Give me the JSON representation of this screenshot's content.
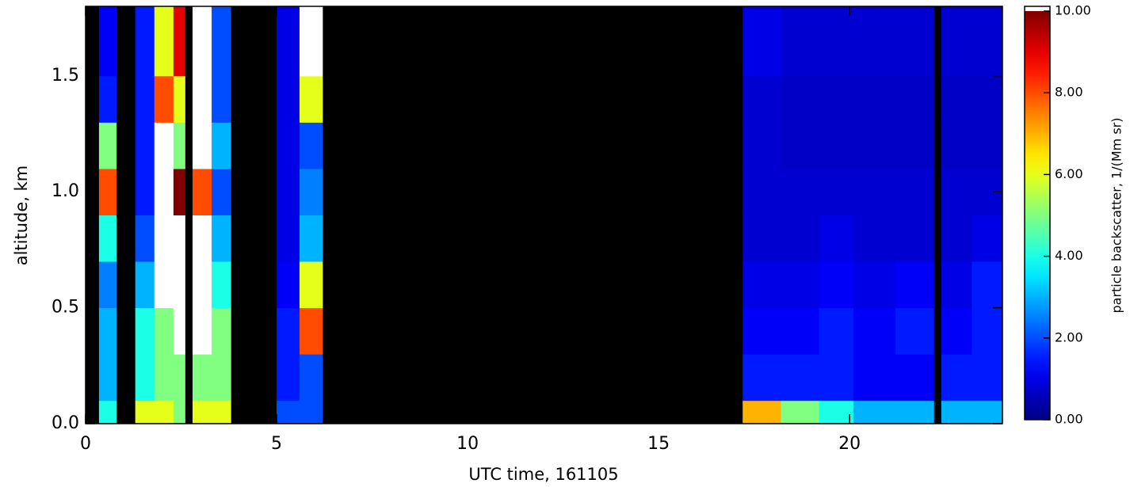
{
  "chart_data": {
    "type": "heatmap",
    "xlabel": "UTC time, 161105",
    "ylabel": "altitude, km",
    "colorbar_label": "particle backscatter, 1/(Mm sr)",
    "colormap": "jet",
    "null_color": "#000000",
    "over_color": "#ffffff",
    "xlim": [
      0,
      24
    ],
    "xticks": [
      0,
      5,
      10,
      15,
      20
    ],
    "ylim": [
      0,
      1.8
    ],
    "yticks": [
      {
        "value": 0,
        "label": "0.0"
      },
      {
        "value": 0.5,
        "label": "0.5"
      },
      {
        "value": 1.0,
        "label": "1.0"
      },
      {
        "value": 1.5,
        "label": "1.5"
      }
    ],
    "clim": [
      0,
      10
    ],
    "cticks": [
      {
        "value": 0,
        "label": "0.00"
      },
      {
        "value": 2,
        "label": "2.00"
      },
      {
        "value": 4,
        "label": "4.00"
      },
      {
        "value": 6,
        "label": "6.00"
      },
      {
        "value": 8,
        "label": "8.00"
      },
      {
        "value": 10,
        "label": "10.00"
      }
    ],
    "x_edges": [
      0,
      0.35,
      0.8,
      1.3,
      1.8,
      2.3,
      2.6,
      2.8,
      3.3,
      3.8,
      5.0,
      5.6,
      6.2,
      17.2,
      18.2,
      19.2,
      20.1,
      21.2,
      22.2,
      22.4,
      23.2,
      24
    ],
    "y_edges": [
      0,
      0.1,
      0.3,
      0.5,
      0.7,
      0.9,
      1.1,
      1.3,
      1.5,
      1.8
    ],
    "z": [
      [
        null,
        4,
        null,
        6,
        6,
        5,
        null,
        6,
        6,
        null,
        2,
        2,
        null,
        7,
        5,
        4,
        3,
        3,
        null,
        3,
        3
      ],
      [
        null,
        3,
        null,
        4,
        5,
        5,
        null,
        5,
        5,
        null,
        1.5,
        2,
        null,
        1.5,
        1.5,
        1.5,
        1.2,
        1.2,
        null,
        1.5,
        1.5
      ],
      [
        null,
        3,
        null,
        4,
        5,
        12,
        null,
        12,
        5,
        null,
        1.5,
        8,
        null,
        1.2,
        1.2,
        1.5,
        1.2,
        1.5,
        null,
        1.2,
        1.5
      ],
      [
        null,
        2.5,
        null,
        3,
        12,
        12,
        null,
        12,
        4,
        null,
        1.2,
        6,
        null,
        1,
        1,
        1.2,
        1,
        1.2,
        null,
        1,
        1.5
      ],
      [
        null,
        4,
        null,
        2,
        12,
        12,
        null,
        12,
        3,
        null,
        1,
        3,
        null,
        0.8,
        0.8,
        1,
        0.8,
        0.8,
        null,
        0.8,
        1
      ],
      [
        null,
        8,
        null,
        1.5,
        12,
        10,
        null,
        8,
        2,
        null,
        1,
        2.5,
        null,
        0.8,
        0.8,
        0.8,
        0.8,
        0.8,
        null,
        0.8,
        0.8
      ],
      [
        null,
        5,
        null,
        1.5,
        12,
        5,
        null,
        12,
        3,
        null,
        1,
        2,
        null,
        0.8,
        0.7,
        0.7,
        0.7,
        0.7,
        null,
        0.7,
        0.7
      ],
      [
        null,
        1.5,
        null,
        1.5,
        8,
        6,
        null,
        12,
        2,
        null,
        1,
        6,
        null,
        0.8,
        0.7,
        0.7,
        0.7,
        0.7,
        null,
        0.7,
        0.7
      ],
      [
        null,
        1.2,
        null,
        1.5,
        6,
        9,
        null,
        12,
        2,
        null,
        1,
        12,
        null,
        1,
        0.8,
        0.8,
        0.8,
        0.8,
        null,
        0.8,
        0.8
      ]
    ]
  }
}
